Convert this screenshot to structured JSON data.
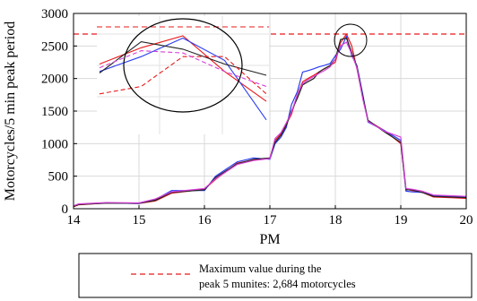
{
  "chart_data": {
    "type": "line",
    "xlabel": "PM",
    "ylabel": "Motorcycles/5 min peak period",
    "xlim": [
      14,
      20
    ],
    "ylim": [
      0,
      3000
    ],
    "x_ticks": [
      "14",
      "15",
      "16",
      "17",
      "18",
      "19",
      "20"
    ],
    "y_ticks": [
      "0",
      "500",
      "1000",
      "1500",
      "2000",
      "2500",
      "3000"
    ],
    "grid": true,
    "reference_line": {
      "y": 2684,
      "color": "#e8191c",
      "style": "dashed"
    },
    "legend": {
      "placement": "bottom",
      "line1": "Maximum value during the",
      "line2": "peak 5 munites: 2,684 motorcycles"
    },
    "series": [
      {
        "color": "#e8191c",
        "x": [
          14,
          14.08,
          14.5,
          15,
          15.25,
          15.5,
          16,
          16.17,
          16.5,
          16.75,
          17,
          17.08,
          17.17,
          17.25,
          17.33,
          17.42,
          17.5,
          17.58,
          17.67,
          17.75,
          17.83,
          17.92,
          18,
          18.08,
          18.17,
          18.25,
          18.33,
          18.42,
          18.5,
          18.75,
          19,
          19.08,
          19.17,
          19.33,
          19.5,
          20
        ],
        "y": [
          30,
          60,
          90,
          80,
          120,
          240,
          300,
          450,
          700,
          750,
          780,
          1050,
          1150,
          1300,
          1450,
          1750,
          1950,
          2000,
          2050,
          2100,
          2150,
          2200,
          2250,
          2550,
          2684,
          2500,
          2150,
          1700,
          1350,
          1200,
          1000,
          300,
          280,
          250,
          180,
          160
        ]
      },
      {
        "color": "#2b3df0",
        "x": [
          14,
          14.08,
          14.5,
          15,
          15.25,
          15.5,
          16,
          16.17,
          16.5,
          16.75,
          17,
          17.08,
          17.17,
          17.25,
          17.33,
          17.42,
          17.5,
          17.58,
          17.67,
          17.75,
          17.83,
          17.92,
          18,
          18.08,
          18.17,
          18.25,
          18.33,
          18.42,
          18.5,
          18.75,
          19,
          19.08,
          19.17,
          19.33,
          19.5,
          20
        ],
        "y": [
          40,
          70,
          90,
          80,
          140,
          280,
          280,
          500,
          720,
          780,
          760,
          1000,
          1100,
          1250,
          1600,
          1800,
          2100,
          2120,
          2150,
          2180,
          2200,
          2230,
          2350,
          2450,
          2650,
          2350,
          2200,
          1750,
          1330,
          1200,
          1050,
          270,
          260,
          250,
          200,
          180
        ]
      },
      {
        "color": "#222222",
        "x": [
          14,
          14.08,
          14.5,
          15,
          15.25,
          15.5,
          16,
          16.17,
          16.5,
          16.75,
          17,
          17.08,
          17.17,
          17.25,
          17.33,
          17.42,
          17.5,
          17.58,
          17.67,
          17.75,
          17.83,
          17.92,
          18,
          18.08,
          18.17,
          18.25,
          18.33,
          18.42,
          18.5,
          18.75,
          19,
          19.08,
          19.17,
          19.33,
          19.5,
          20
        ],
        "y": [
          35,
          65,
          85,
          85,
          130,
          250,
          290,
          480,
          690,
          760,
          780,
          1020,
          1130,
          1280,
          1500,
          1700,
          1900,
          1950,
          2000,
          2100,
          2150,
          2200,
          2300,
          2600,
          2620,
          2400,
          2180,
          1720,
          1360,
          1180,
          1020,
          290,
          290,
          250,
          190,
          170
        ]
      },
      {
        "color": "#d63fd8",
        "x": [
          14,
          14.08,
          14.5,
          15,
          15.25,
          15.5,
          16,
          16.17,
          16.5,
          16.75,
          17,
          17.08,
          17.17,
          17.25,
          17.33,
          17.42,
          17.5,
          17.58,
          17.67,
          17.75,
          17.83,
          17.92,
          18,
          18.08,
          18.17,
          18.25,
          18.33,
          18.42,
          18.5,
          18.75,
          19,
          19.08,
          19.17,
          19.33,
          19.5,
          20
        ],
        "y": [
          45,
          75,
          95,
          90,
          150,
          260,
          310,
          460,
          680,
          740,
          770,
          1080,
          1170,
          1320,
          1480,
          1760,
          1920,
          1980,
          2030,
          2080,
          2120,
          2180,
          2300,
          2500,
          2560,
          2380,
          2160,
          1680,
          1340,
          1190,
          1100,
          310,
          300,
          270,
          210,
          190
        ]
      }
    ],
    "inset": {
      "description_of_zoom": "peak area near 18:10",
      "series": [
        {
          "color": "#e8191c",
          "style": "solid",
          "y": [
            2300,
            2520,
            2680,
            2200,
            1800
          ]
        },
        {
          "color": "#2b3df0",
          "style": "solid",
          "y": [
            2200,
            2400,
            2650,
            2350,
            1550
          ]
        },
        {
          "color": "#222222",
          "style": "solid",
          "y": [
            2180,
            2600,
            2500,
            2300,
            2150
          ]
        },
        {
          "color": "#e8191c",
          "style": "dashed",
          "y": [
            1900,
            2000,
            2400,
            2400,
            1900
          ]
        },
        {
          "color": "#d63fd8",
          "style": "dashed",
          "y": [
            2250,
            2480,
            2450,
            2200,
            2000
          ]
        }
      ]
    }
  }
}
